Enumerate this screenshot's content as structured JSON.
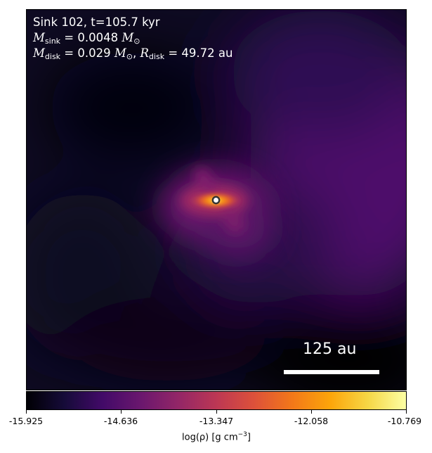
{
  "annotation": {
    "line1": "Sink 102, t=105.7 kyr",
    "sink_mass_symbol": "M",
    "sink_mass_sub": "sink",
    "sink_mass_value": "= 0.0048",
    "sink_mass_unit": "M",
    "sink_mass_unit_sub": "⊙",
    "disk_mass_symbol": "M",
    "disk_mass_sub": "disk",
    "disk_mass_value": "= 0.029",
    "disk_mass_unit": "M",
    "disk_mass_unit_sub": "⊙",
    "disk_radius_symbol": "R",
    "disk_radius_sub": "disk",
    "disk_radius_value": "= 49.72 au"
  },
  "scalebar": {
    "label": "125 au"
  },
  "colorbar": {
    "colormap": "inferno",
    "ticks": [
      "-15.925",
      "-14.636",
      "-13.347",
      "-12.058",
      "-10.769"
    ],
    "label_prefix": "log(ρ) [g cm",
    "label_exp": "−3",
    "label_suffix": "]"
  },
  "sink_marker": {
    "fill": "#ffffff",
    "stroke": "#333333"
  }
}
